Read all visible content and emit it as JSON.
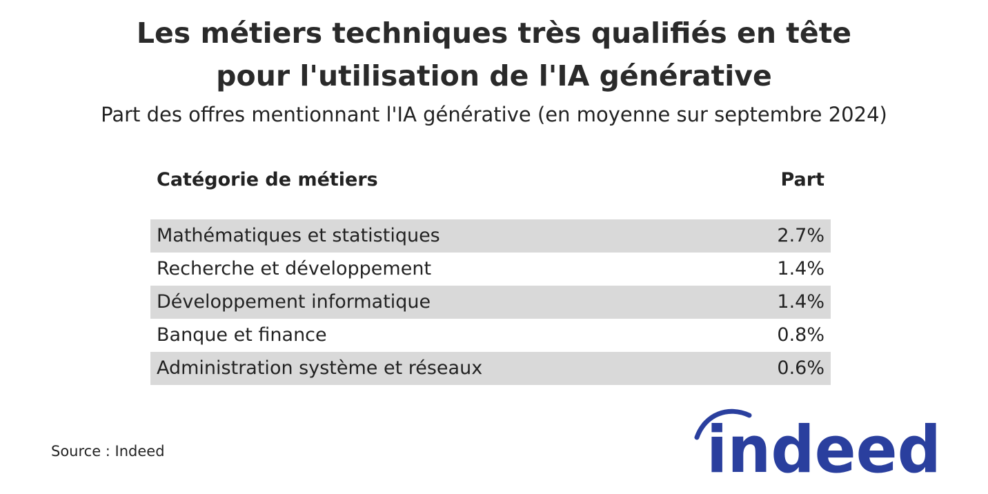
{
  "header": {
    "title_line1": "Les métiers techniques très qualifiés en tête",
    "title_line2": "pour l'utilisation de l'IA générative",
    "subtitle": "Part des offres mentionnant l'IA générative (en moyenne sur septembre 2024)"
  },
  "chart_data": {
    "type": "table",
    "columns": [
      "Catégorie de métiers",
      "Part"
    ],
    "rows": [
      {
        "category": "Mathématiques et statistiques",
        "value": "2.7%"
      },
      {
        "category": "Recherche et développement",
        "value": "1.4%"
      },
      {
        "category": "Développement informatique",
        "value": "1.4%"
      },
      {
        "category": "Banque et finance",
        "value": "0.8%"
      },
      {
        "category": "Administration système et réseaux",
        "value": "0.6%"
      }
    ],
    "row_shading": "alternating, rows 1, 3, 5 shaded",
    "colors": {
      "shaded_row": "#d9d9d9",
      "text": "#222222"
    }
  },
  "footer": {
    "source": "Source : Indeed",
    "logo": {
      "text": "indeed",
      "icon": "indeed-logo",
      "color": "#2a3f9e"
    }
  }
}
